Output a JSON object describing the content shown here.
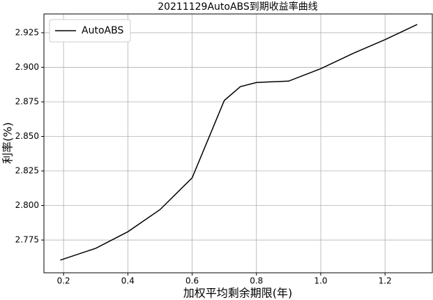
{
  "chart_data": {
    "type": "line",
    "title": "20211129AutoABS到期收益率曲线",
    "x_label": "加权平均剩余期限(年)",
    "y_label": "利率(%)",
    "x": [
      0.19,
      0.3,
      0.4,
      0.5,
      0.6,
      0.65,
      0.7,
      0.75,
      0.8,
      0.9,
      1.0,
      1.1,
      1.2,
      1.3
    ],
    "series": [
      {
        "name": "AutoABS",
        "color": "#000000",
        "values": [
          2.7605,
          2.769,
          2.781,
          2.797,
          2.82,
          2.848,
          2.876,
          2.886,
          2.889,
          2.89,
          2.899,
          2.91,
          2.92,
          2.931
        ]
      }
    ],
    "xlim": [
      0.139,
      1.347
    ],
    "ylim": [
      2.7513,
      2.9386
    ],
    "xticks": [
      0.2,
      0.4,
      0.6,
      0.8,
      {
        "value": 1,
        "label": "1.0"
      },
      1.2
    ],
    "yticks": [
      2.775,
      {
        "value": 2.8,
        "label": "2.800"
      },
      2.825,
      {
        "value": 2.85,
        "label": "2.850"
      },
      2.875,
      {
        "value": 2.9,
        "label": "2.900"
      },
      2.925
    ],
    "grid": true,
    "legend": "upper left"
  }
}
